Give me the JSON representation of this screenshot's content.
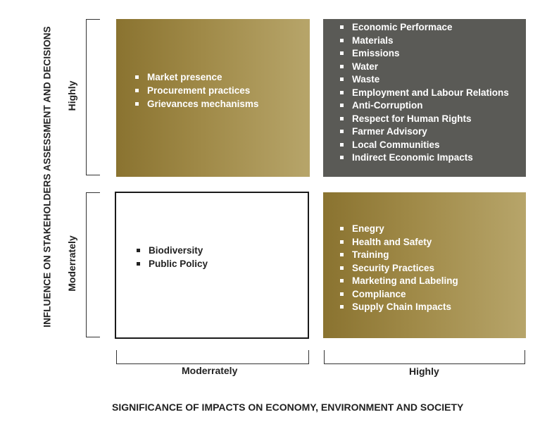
{
  "y_axis": {
    "title": "INFLUENCE ON STAKEHOLDERS ASSESSMENT AND DECISIONS",
    "high_label": "Highly",
    "moderate_label": "Moderrately"
  },
  "x_axis": {
    "title": "SIGNIFICANCE OF IMPACTS ON ECONOMY, ENVIRONMENT AND SOCIETY",
    "moderate_label": "Moderrately",
    "high_label": "Highly"
  },
  "quadrants": {
    "top_left": {
      "fill": "#9c8542",
      "items": [
        "Market presence",
        "Procurement practices",
        "Grievances mechanisms"
      ]
    },
    "top_right": {
      "fill": "#5a5a56",
      "items": [
        "Economic Performace",
        "Materials",
        "Emissions",
        "Water",
        "Waste",
        "Employment and Labour Relations",
        "Anti-Corruption",
        "Respect for Human Rights",
        "Farmer Advisory",
        "Local Communities",
        "Indirect Economic Impacts"
      ]
    },
    "bottom_left": {
      "fill": "#ffffff",
      "items": [
        "Biodiversity",
        "Public Policy"
      ]
    },
    "bottom_right": {
      "fill": "#9c8542",
      "items": [
        "Enegry",
        "Health and Safety",
        "Training",
        "Security Practices",
        "Marketing and Labeling",
        "Compliance",
        "Supply Chain Impacts"
      ]
    }
  }
}
